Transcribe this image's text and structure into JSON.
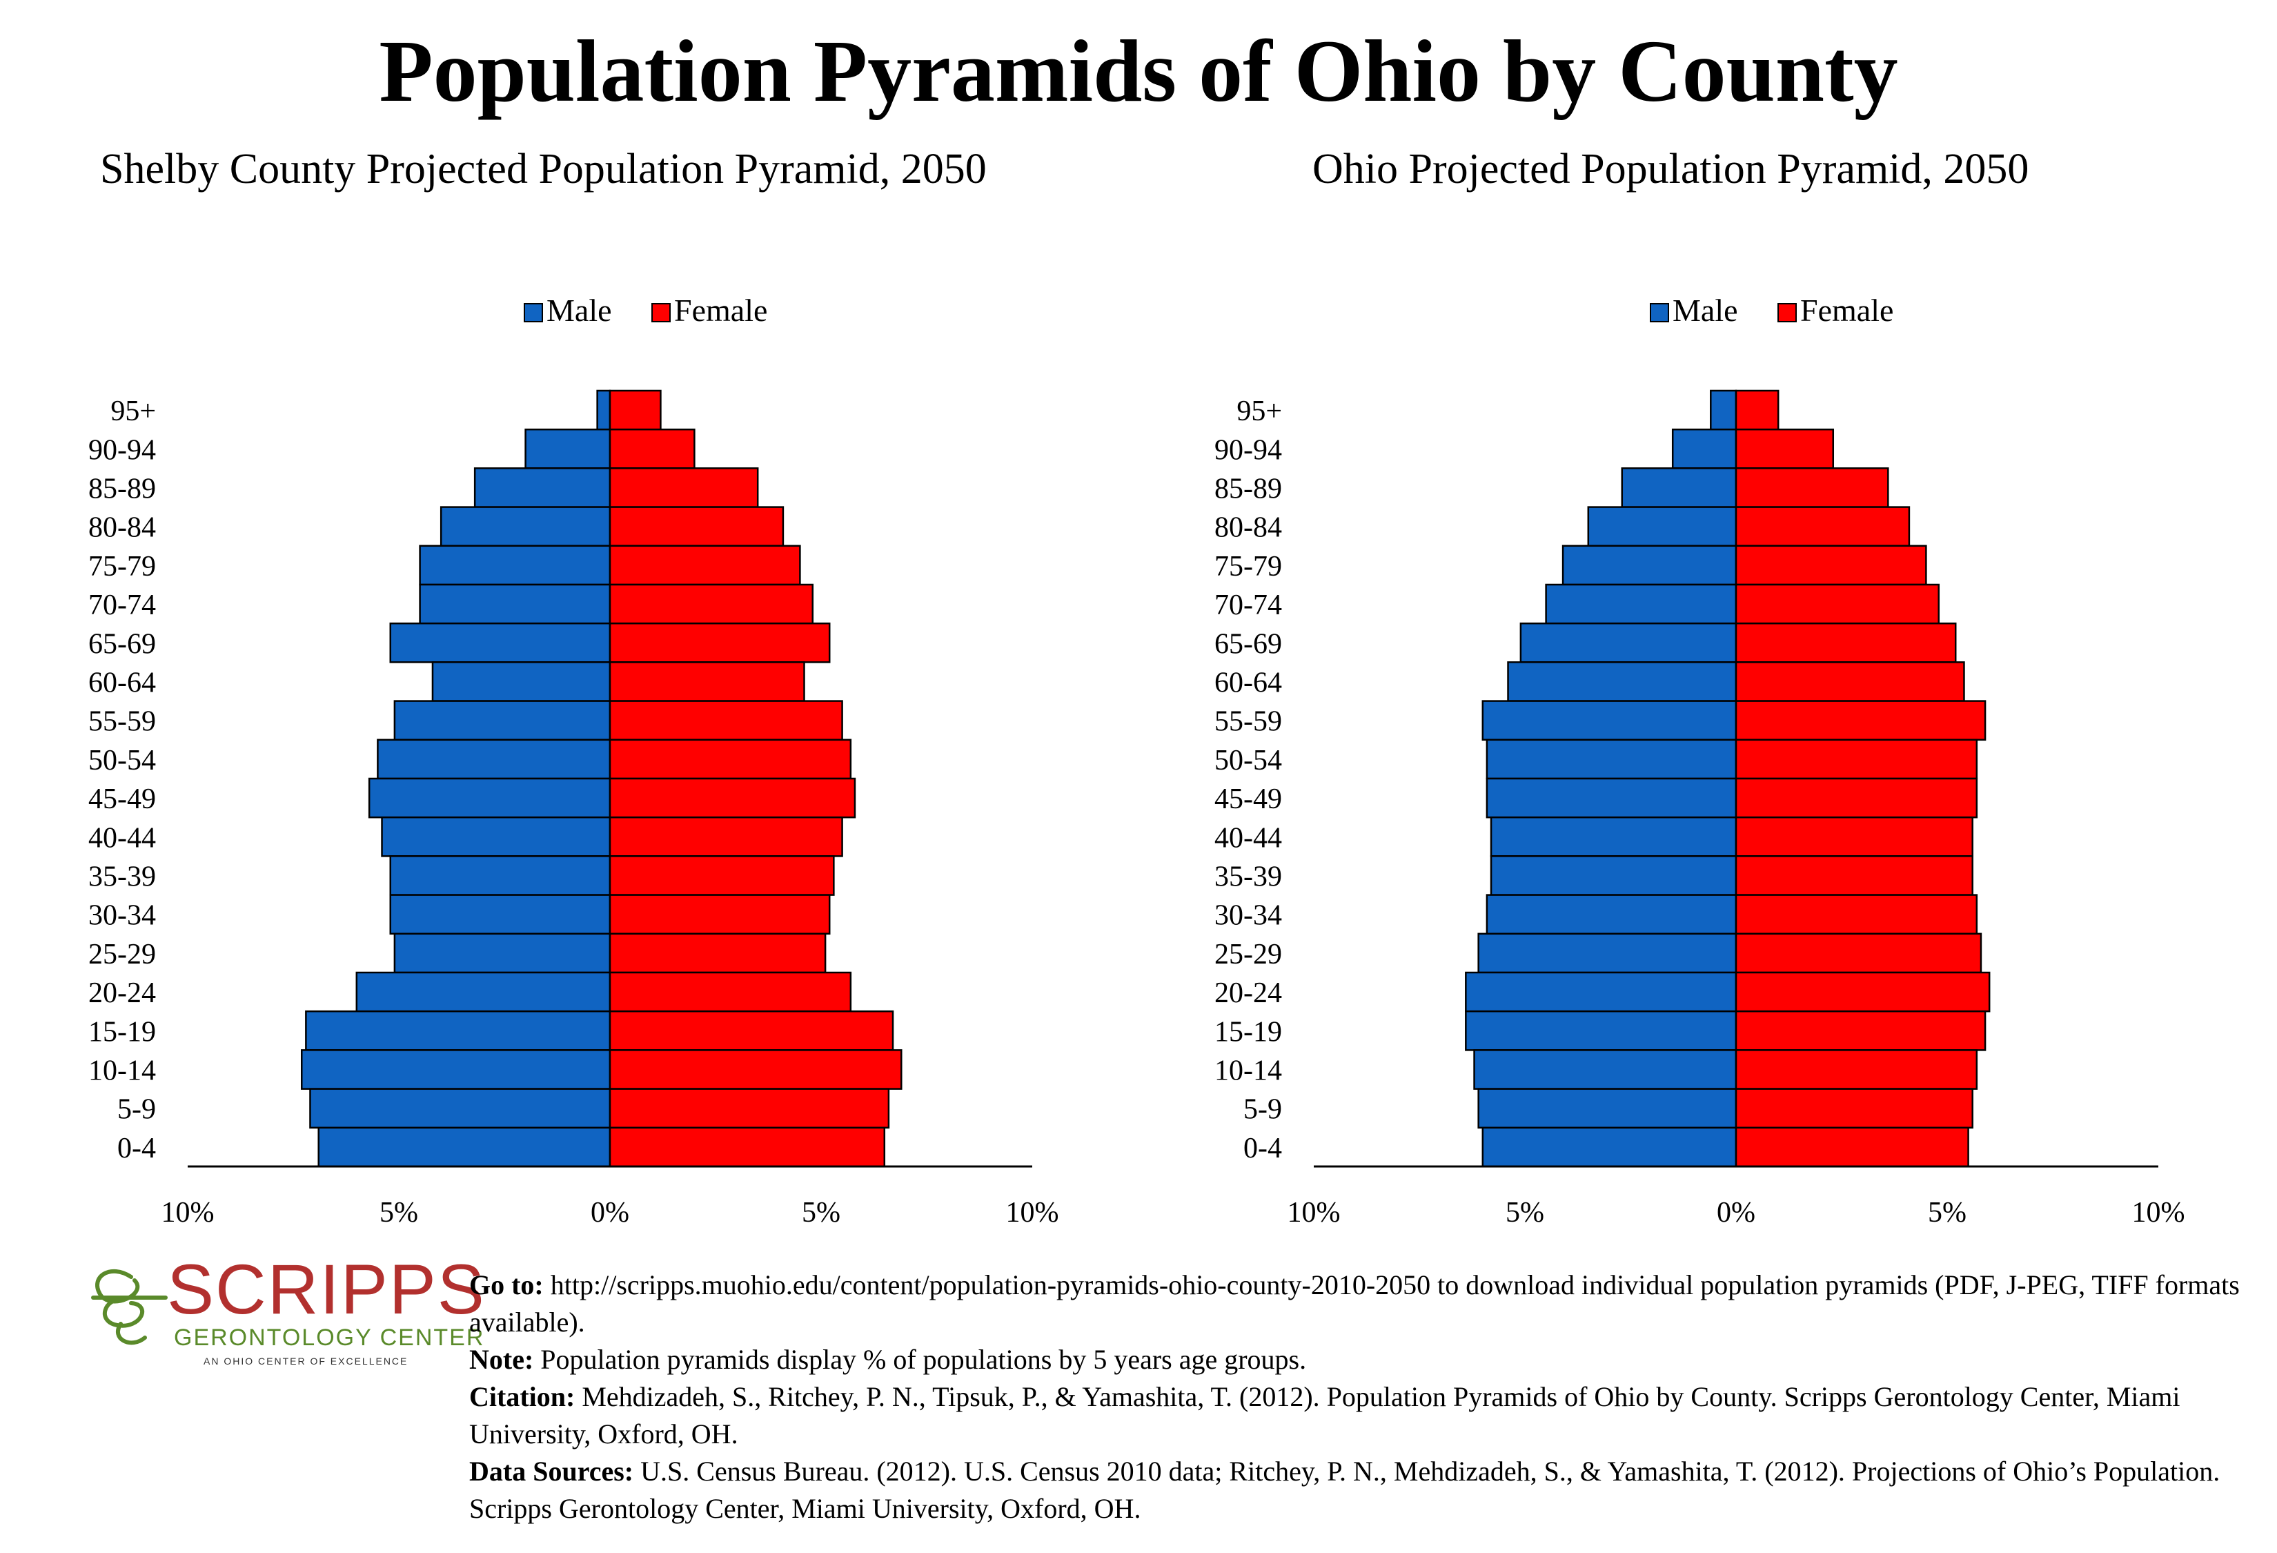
{
  "title": "Population Pyramids of Ohio by County",
  "colors": {
    "male": "#1064c2",
    "female": "#ff0000",
    "outline": "#000000"
  },
  "chart_data": [
    {
      "type": "bar",
      "title": "Shelby County Projected Population Pyramid, 2050",
      "orientation": "horizontal-pyramid",
      "legend": [
        "Male",
        "Female"
      ],
      "legend_position": "top",
      "categories": [
        "95+",
        "90-94",
        "85-89",
        "80-84",
        "75-79",
        "70-74",
        "65-69",
        "60-64",
        "55-59",
        "50-54",
        "45-49",
        "40-44",
        "35-39",
        "30-34",
        "25-29",
        "20-24",
        "15-19",
        "10-14",
        "5-9",
        "0-4"
      ],
      "series": [
        {
          "name": "Male",
          "values": [
            0.3,
            2.0,
            3.2,
            4.0,
            4.5,
            4.5,
            5.2,
            4.2,
            5.1,
            5.5,
            5.7,
            5.4,
            5.2,
            5.2,
            5.1,
            6.0,
            7.2,
            7.3,
            7.1,
            6.9
          ]
        },
        {
          "name": "Female",
          "values": [
            1.2,
            2.0,
            3.5,
            4.1,
            4.5,
            4.8,
            5.2,
            4.6,
            5.5,
            5.7,
            5.8,
            5.5,
            5.3,
            5.2,
            5.1,
            5.7,
            6.7,
            6.9,
            6.6,
            6.5
          ]
        }
      ],
      "xticks": [
        "10%",
        "5%",
        "0%",
        "5%",
        "10%"
      ],
      "xlim": [
        -10,
        10
      ],
      "grid": false
    },
    {
      "type": "bar",
      "title": "Ohio Projected Population Pyramid, 2050",
      "orientation": "horizontal-pyramid",
      "legend": [
        "Male",
        "Female"
      ],
      "legend_position": "top",
      "categories": [
        "95+",
        "90-94",
        "85-89",
        "80-84",
        "75-79",
        "70-74",
        "65-69",
        "60-64",
        "55-59",
        "50-54",
        "45-49",
        "40-44",
        "35-39",
        "30-34",
        "25-29",
        "20-24",
        "15-19",
        "10-14",
        "5-9",
        "0-4"
      ],
      "series": [
        {
          "name": "Male",
          "values": [
            0.6,
            1.5,
            2.7,
            3.5,
            4.1,
            4.5,
            5.1,
            5.4,
            6.0,
            5.9,
            5.9,
            5.8,
            5.8,
            5.9,
            6.1,
            6.4,
            6.4,
            6.2,
            6.1,
            6.0
          ]
        },
        {
          "name": "Female",
          "values": [
            1.0,
            2.3,
            3.6,
            4.1,
            4.5,
            4.8,
            5.2,
            5.4,
            5.9,
            5.7,
            5.7,
            5.6,
            5.6,
            5.7,
            5.8,
            6.0,
            5.9,
            5.7,
            5.6,
            5.5
          ]
        }
      ],
      "xticks": [
        "10%",
        "5%",
        "0%",
        "5%",
        "10%"
      ],
      "xlim": [
        -10,
        10
      ],
      "grid": false
    }
  ],
  "logo": {
    "word": "SCRIPPS",
    "subtitle": "GERONTOLOGY CENTER",
    "tagline": "AN OHIO CENTER OF EXCELLENCE",
    "icon": "scripps-swirl-icon",
    "word_color": "#b2302e",
    "sub_color": "#5a8a2a"
  },
  "notes": [
    {
      "label": "Go to:",
      "text": " http://scripps.muohio.edu/content/population-pyramids-ohio-county-2010-2050 to download individual population pyramids (PDF, J-PEG, TIFF formats available)."
    },
    {
      "label": "Note:",
      "text": " Population pyramids display % of populations by 5 years age groups."
    },
    {
      "label": "Citation:",
      "text": " Mehdizadeh, S., Ritchey, P. N., Tipsuk, P., & Yamashita, T. (2012). Population Pyramids of Ohio by County. Scripps Gerontology Center, Miami University, Oxford, OH."
    },
    {
      "label": "Data Sources:",
      "text": " U.S. Census Bureau. (2012). U.S. Census 2010 data; Ritchey, P. N., Mehdizadeh, S., & Yamashita, T. (2012). Projections of Ohio’s Population. Scripps Gerontology Center, Miami University, Oxford, OH."
    }
  ]
}
